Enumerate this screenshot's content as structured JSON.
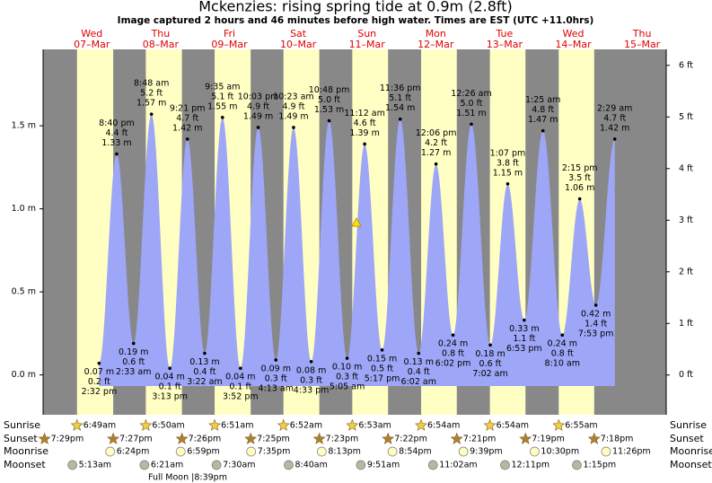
{
  "chart_data": {
    "type": "tide",
    "title": "Mckenzies: rising  spring tide at 0.9m (2.8ft)",
    "subtitle": "Image captured 2 hours and 46 minutes before high water. Times are EST (UTC +11.0hrs)",
    "days": [
      {
        "weekday": "Wed",
        "date": "07–Mar"
      },
      {
        "weekday": "Thu",
        "date": "08–Mar"
      },
      {
        "weekday": "Fri",
        "date": "09–Mar"
      },
      {
        "weekday": "Sat",
        "date": "10–Mar"
      },
      {
        "weekday": "Sun",
        "date": "11–Mar"
      },
      {
        "weekday": "Mon",
        "date": "12–Mar"
      },
      {
        "weekday": "Tue",
        "date": "13–Mar"
      },
      {
        "weekday": "Wed",
        "date": "14–Mar"
      },
      {
        "weekday": "Thu",
        "date": "15–Mar"
      }
    ],
    "tides": [
      {
        "time": "2:32 pm",
        "m": 0.07,
        "m_label": "0.07 m",
        "ft": 0.2,
        "ft_label": "0.2 ft"
      },
      {
        "time": "8:40 pm",
        "m": 1.33,
        "m_label": "1.33 m",
        "ft": 4.4,
        "ft_label": "4.4 ft"
      },
      {
        "time": "2:33 am",
        "m": 0.19,
        "m_label": "0.19 m",
        "ft": 0.6,
        "ft_label": "0.6 ft"
      },
      {
        "time": "8:48 am",
        "m": 1.57,
        "m_label": "1.57 m",
        "ft": 5.2,
        "ft_label": "5.2 ft"
      },
      {
        "time": "3:13 pm",
        "m": 0.04,
        "m_label": "0.04 m",
        "ft": 0.1,
        "ft_label": "0.1 ft"
      },
      {
        "time": "9:21 pm",
        "m": 1.42,
        "m_label": "1.42 m",
        "ft": 4.7,
        "ft_label": "4.7 ft"
      },
      {
        "time": "3:22 am",
        "m": 0.13,
        "m_label": "0.13 m",
        "ft": 0.4,
        "ft_label": "0.4 ft"
      },
      {
        "time": "9:35 am",
        "m": 1.55,
        "m_label": "1.55 m",
        "ft": 5.1,
        "ft_label": "5.1 ft"
      },
      {
        "time": "3:52 pm",
        "m": 0.04,
        "m_label": "0.04 m",
        "ft": 0.1,
        "ft_label": "0.1 ft"
      },
      {
        "time": "10:03 pm",
        "m": 1.49,
        "m_label": "1.49 m",
        "ft": 4.9,
        "ft_label": "4.9 ft"
      },
      {
        "time": "4:13 am",
        "m": 0.09,
        "m_label": "0.09 m",
        "ft": 0.3,
        "ft_label": "0.3 ft"
      },
      {
        "time": "10:23 am",
        "m": 1.49,
        "m_label": "1.49 m",
        "ft": 4.9,
        "ft_label": "4.9 ft"
      },
      {
        "time": "4:33 pm",
        "m": 0.08,
        "m_label": "0.08 m",
        "ft": 0.3,
        "ft_label": "0.3 ft"
      },
      {
        "time": "10:48 pm",
        "m": 1.53,
        "m_label": "1.53 m",
        "ft": 5.0,
        "ft_label": "5.0 ft"
      },
      {
        "time": "5:05 am",
        "m": 0.1,
        "m_label": "0.10 m",
        "ft": 0.3,
        "ft_label": "0.3 ft"
      },
      {
        "time": "11:12 am",
        "m": 1.39,
        "m_label": "1.39 m",
        "ft": 4.6,
        "ft_label": "4.6 ft"
      },
      {
        "time": "5:17 pm",
        "m": 0.15,
        "m_label": "0.15 m",
        "ft": 0.5,
        "ft_label": "0.5 ft"
      },
      {
        "time": "11:36 pm",
        "m": 1.54,
        "m_label": "1.54 m",
        "ft": 5.1,
        "ft_label": "5.1 ft"
      },
      {
        "time": "6:02 am",
        "m": 0.13,
        "m_label": "0.13 m",
        "ft": 0.4,
        "ft_label": "0.4 ft"
      },
      {
        "time": "12:06 pm",
        "m": 1.27,
        "m_label": "1.27 m",
        "ft": 4.2,
        "ft_label": "4.2 ft"
      },
      {
        "time": "6:02 pm",
        "m": 0.24,
        "m_label": "0.24 m",
        "ft": 0.8,
        "ft_label": "0.8 ft"
      },
      {
        "time": "12:26 am",
        "m": 1.51,
        "m_label": "1.51 m",
        "ft": 5.0,
        "ft_label": "5.0 ft"
      },
      {
        "time": "7:02 am",
        "m": 0.18,
        "m_label": "0.18 m",
        "ft": 0.6,
        "ft_label": "0.6 ft"
      },
      {
        "time": "1:07 pm",
        "m": 1.15,
        "m_label": "1.15 m",
        "ft": 3.8,
        "ft_label": "3.8 ft"
      },
      {
        "time": "6:53 pm",
        "m": 0.33,
        "m_label": "0.33 m",
        "ft": 1.1,
        "ft_label": "1.1 ft"
      },
      {
        "time": "1:25 am",
        "m": 1.47,
        "m_label": "1.47 m",
        "ft": 4.8,
        "ft_label": "4.8 ft"
      },
      {
        "time": "8:10 am",
        "m": 0.24,
        "m_label": "0.24 m",
        "ft": 0.8,
        "ft_label": "0.8 ft"
      },
      {
        "time": "2:15 pm",
        "m": 1.06,
        "m_label": "1.06 m",
        "ft": 3.5,
        "ft_label": "3.5 ft"
      },
      {
        "time": "7:53 pm",
        "m": 0.42,
        "m_label": "0.42 m",
        "ft": 1.4,
        "ft_label": "1.4 ft"
      },
      {
        "time": "2:29 am",
        "m": 1.42,
        "m_label": "1.42 m",
        "ft": 4.7,
        "ft_label": "4.7 ft"
      }
    ],
    "ylim": [
      -0.24,
      1.96
    ],
    "yticks": [
      {
        "value": 0,
        "label": "0.0 m"
      },
      {
        "value": 0.5,
        "label": "0.5 m"
      },
      {
        "value": 1,
        "label": "1.0 m"
      },
      {
        "value": 1.5,
        "label": "1.5 m"
      }
    ],
    "y2lim": [
      -0.77,
      6.31
    ],
    "y2ticks": [
      {
        "value": 0,
        "label": "0 ft"
      },
      {
        "value": 1,
        "label": "1 ft"
      },
      {
        "value": 2,
        "label": "2 ft"
      },
      {
        "value": 3,
        "label": "3 ft"
      },
      {
        "value": 4,
        "label": "4 ft"
      },
      {
        "value": 5,
        "label": "5 ft"
      },
      {
        "value": 6,
        "label": "6 ft"
      }
    ],
    "rows": {
      "sunrise": "Sunrise",
      "sunset": "Sunset",
      "moonrise": "Moonrise",
      "moonset": "Moonset"
    },
    "sunrise": [
      "6:49am",
      "6:50am",
      "6:51am",
      "6:52am",
      "6:53am",
      "6:54am",
      "6:54am",
      "6:55am"
    ],
    "sunset": [
      "7:29pm",
      "7:27pm",
      "7:26pm",
      "7:25pm",
      "7:23pm",
      "7:22pm",
      "7:21pm",
      "7:19pm",
      "7:18pm"
    ],
    "moonrise": [
      "6:24pm",
      "6:59pm",
      "7:35pm",
      "8:13pm",
      "8:54pm",
      "9:39pm",
      "10:30pm",
      "11:26pm"
    ],
    "moonset": [
      "5:13am",
      "6:21am",
      "7:30am",
      "8:40am",
      "9:51am",
      "11:02am",
      "12:11pm",
      "1:15pm"
    ],
    "moon_phase": "Full Moon |8:39pm"
  }
}
